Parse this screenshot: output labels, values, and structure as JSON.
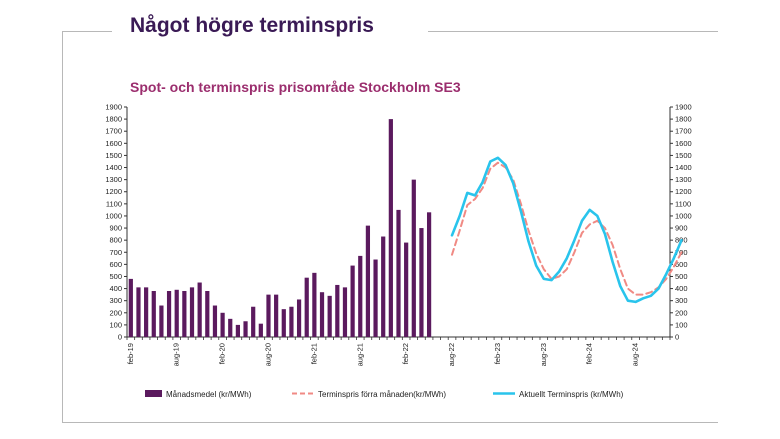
{
  "page": {
    "heading": "Något högre terminspris"
  },
  "chart_data": {
    "type": "bar",
    "title": "Spot- och terminspris prisområde Stockholm SE3",
    "ylim": [
      0,
      1900
    ],
    "y_ticks": [
      0,
      100,
      200,
      300,
      400,
      500,
      600,
      700,
      800,
      900,
      1000,
      1100,
      1200,
      1300,
      1400,
      1500,
      1600,
      1700,
      1800,
      1900
    ],
    "x_tick_labels": [
      {
        "index": 0,
        "label": "feb-19"
      },
      {
        "index": 6,
        "label": "aug-19"
      },
      {
        "index": 12,
        "label": "feb-20"
      },
      {
        "index": 18,
        "label": "aug-20"
      },
      {
        "index": 24,
        "label": "feb-21"
      },
      {
        "index": 30,
        "label": "aug-21"
      },
      {
        "index": 36,
        "label": "feb-22"
      },
      {
        "index": 42,
        "label": "aug-22"
      },
      {
        "index": 48,
        "label": "feb-23"
      },
      {
        "index": 54,
        "label": "aug-23"
      },
      {
        "index": 60,
        "label": "feb-24"
      },
      {
        "index": 66,
        "label": "aug-24"
      }
    ],
    "grid": false,
    "legend_position": "bottom",
    "colors": {
      "bars": "#5b1a5e",
      "previous_forward": "#f08a84",
      "current_forward": "#29c4ec",
      "title": "#9b2e6e",
      "heading": "#3a1a55"
    },
    "series": [
      {
        "name": "Månadsmedel (kr/MWh)",
        "kind": "bar",
        "start_index": 0,
        "values": [
          480,
          410,
          410,
          380,
          260,
          380,
          390,
          380,
          410,
          450,
          380,
          260,
          200,
          150,
          100,
          130,
          250,
          110,
          350,
          350,
          230,
          250,
          310,
          490,
          530,
          370,
          340,
          430,
          410,
          590,
          670,
          920,
          640,
          830,
          1800,
          1050,
          780,
          1300,
          900,
          1030
        ]
      },
      {
        "name": "Terminspris förra månaden(kr/MWh)",
        "kind": "line",
        "style": "dashed",
        "start_index": 42,
        "values": [
          680,
          880,
          1090,
          1140,
          1230,
          1390,
          1440,
          1400,
          1300,
          1100,
          880,
          690,
          560,
          480,
          500,
          560,
          700,
          860,
          930,
          960,
          900,
          760,
          560,
          400,
          350,
          350,
          370,
          410,
          480,
          580,
          700
        ]
      },
      {
        "name": "Aktuellt Terminspris (kr/MWh)",
        "kind": "line",
        "style": "solid",
        "start_index": 42,
        "values": [
          840,
          1000,
          1190,
          1170,
          1280,
          1450,
          1480,
          1420,
          1270,
          1040,
          790,
          590,
          480,
          470,
          540,
          650,
          800,
          960,
          1050,
          1000,
          850,
          620,
          420,
          300,
          290,
          320,
          340,
          400,
          520,
          650,
          800
        ]
      }
    ]
  }
}
